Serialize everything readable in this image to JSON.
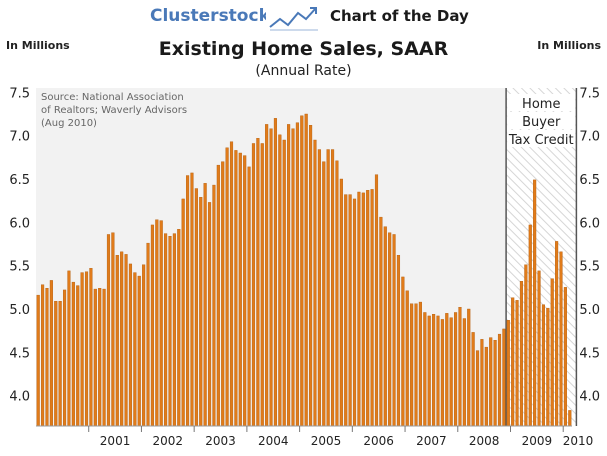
{
  "header": {
    "brand": "Clusterstock",
    "section": "Chart of the Day",
    "logo_icon": "trend-chart-icon"
  },
  "colors": {
    "bar": "#e07b1a",
    "bar_edge": "#b35c0a",
    "brand": "#4a79b8",
    "plot_bg": "#f2f2f2",
    "annotation_hatch": "#d0d0d0"
  },
  "chart_data": {
    "type": "bar",
    "title": "Existing Home Sales, SAAR",
    "subtitle": "(Annual Rate)",
    "ylabel_left": "In Millions",
    "ylabel_right": "In Millions",
    "source_lines": [
      "Source: National Association",
      "of Realtors; Waverly Advisors",
      "(Aug 2010)"
    ],
    "ylim": [
      3.65,
      7.55
    ],
    "yticks": [
      4.0,
      4.5,
      5.0,
      5.5,
      6.0,
      6.5,
      7.0,
      7.5
    ],
    "ytick_labels": [
      "4.0",
      "4.5",
      "5.0",
      "5.5",
      "6.0",
      "6.5",
      "7.0",
      "7.5"
    ],
    "xtick_labels": [
      "2001",
      "2002",
      "2003",
      "2004",
      "2005",
      "2006",
      "2007",
      "2008",
      "2009",
      "2010"
    ],
    "grid": false,
    "start": "2000-01",
    "frequency": "monthly",
    "values": [
      5.16,
      5.28,
      5.24,
      5.33,
      5.09,
      5.09,
      5.22,
      5.44,
      5.31,
      5.27,
      5.42,
      5.43,
      5.47,
      5.23,
      5.24,
      5.23,
      5.86,
      5.88,
      5.62,
      5.66,
      5.63,
      5.52,
      5.42,
      5.38,
      5.51,
      5.76,
      5.97,
      6.03,
      6.02,
      5.87,
      5.84,
      5.87,
      5.92,
      6.27,
      6.54,
      6.57,
      6.39,
      6.29,
      6.45,
      6.23,
      6.43,
      6.66,
      6.7,
      6.86,
      6.93,
      6.83,
      6.8,
      6.77,
      6.64,
      6.91,
      6.97,
      6.91,
      7.13,
      7.08,
      7.2,
      7.01,
      6.95,
      7.13,
      7.08,
      7.15,
      7.23,
      7.25,
      7.12,
      6.95,
      6.84,
      6.7,
      6.84,
      6.84,
      6.71,
      6.5,
      6.32,
      6.32,
      6.27,
      6.35,
      6.34,
      6.37,
      6.38,
      6.55,
      6.06,
      5.95,
      5.88,
      5.86,
      5.62,
      5.37,
      5.21,
      5.06,
      5.06,
      5.08,
      4.96,
      4.92,
      4.94,
      4.92,
      4.88,
      4.95,
      4.9,
      4.96,
      5.02,
      4.89,
      5.0,
      4.73,
      4.52,
      4.65,
      4.56,
      4.67,
      4.64,
      4.71,
      4.77,
      4.87,
      5.13,
      5.1,
      5.32,
      5.51,
      5.97,
      6.49,
      5.44,
      5.05,
      5.01,
      5.35,
      5.78,
      5.66,
      5.25,
      3.83
    ],
    "annotation": {
      "label_lines": [
        "Home",
        "Buyer",
        "Tax Credit"
      ],
      "from_index": 107,
      "to_index": 123
    }
  }
}
